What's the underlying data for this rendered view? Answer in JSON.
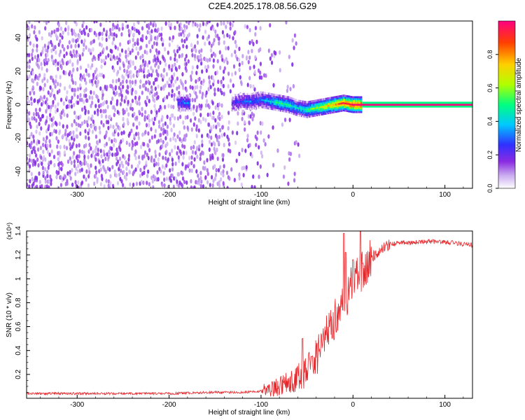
{
  "title": "C2E4.2025.178.08.56.G29",
  "chart_data": [
    {
      "type": "heatmap",
      "title": "C2E4.2025.178.08.56.G29",
      "xlabel": "Height of straight line (km)",
      "ylabel": "Frequency (Hz)",
      "xlim": [
        -355,
        130
      ],
      "ylim": [
        -50,
        50
      ],
      "x_ticks": [
        -300,
        -200,
        -100,
        0,
        100
      ],
      "y_ticks": [
        -40,
        -20,
        0,
        20,
        40
      ],
      "colorbar": {
        "label": "Normalized spectral amplitude",
        "range": [
          0.0,
          1.0
        ],
        "ticks": [
          "0.0",
          "0.2",
          "0.4",
          "0.6",
          "0.8"
        ],
        "colors": [
          "#ffffff",
          "#c8a8f0",
          "#8a2be2",
          "#3030ff",
          "#00c8ff",
          "#00ff80",
          "#b0ff00",
          "#ffd000",
          "#ff4000",
          "#ff0080"
        ]
      },
      "ridge": {
        "x": [
          -190,
          -180,
          -130,
          -120,
          -110,
          -100,
          -90,
          -80,
          -70,
          -60,
          -50,
          -40,
          -30,
          -20,
          -10,
          0,
          10,
          130
        ],
        "freq": [
          1,
          1,
          1,
          2,
          2,
          3,
          2,
          1,
          0,
          -2,
          -3,
          -2,
          -1,
          0,
          1,
          0,
          0,
          0
        ],
        "amplitude": [
          0.3,
          0.3,
          0.2,
          0.3,
          0.3,
          0.3,
          0.4,
          0.5,
          0.5,
          0.4,
          0.5,
          0.6,
          0.7,
          0.8,
          0.9,
          0.95,
          1.0,
          1.0
        ]
      },
      "noise_region": {
        "x_start": -355,
        "x_end": -100,
        "density": "high"
      },
      "grid": false
    },
    {
      "type": "line",
      "xlabel": "Height of straight line (km)",
      "ylabel": "SNR (10 * v/v)",
      "y_scale_label": "(x10⁴)",
      "xlim": [
        -355,
        130
      ],
      "ylim": [
        0,
        1.4
      ],
      "x_ticks": [
        -300,
        -200,
        -100,
        0,
        100
      ],
      "y_ticks": [
        0.2,
        0.4,
        0.6,
        0.8,
        1.0,
        1.2,
        1.4
      ],
      "color": "#e8262a",
      "series": [
        {
          "x": [
            -355,
            -300,
            -250,
            -200,
            -150,
            -120,
            -100,
            -90,
            -80,
            -70,
            -60,
            -50,
            -40,
            -30,
            -20,
            -10,
            0,
            10,
            20,
            30,
            40,
            50,
            60,
            80,
            100,
            120,
            130
          ],
          "values": [
            0.04,
            0.04,
            0.04,
            0.04,
            0.05,
            0.05,
            0.06,
            0.08,
            0.1,
            0.14,
            0.17,
            0.22,
            0.35,
            0.5,
            0.65,
            0.8,
            0.95,
            1.08,
            1.18,
            1.25,
            1.29,
            1.3,
            1.3,
            1.31,
            1.31,
            1.29,
            1.28
          ]
        }
      ],
      "spikes": [
        {
          "x": -55,
          "value": 0.5
        },
        {
          "x": -45,
          "value": 0.35
        },
        {
          "x": -25,
          "value": 0.65
        },
        {
          "x": -10,
          "value": 1.38
        },
        {
          "x": -8,
          "value": 1.22
        },
        {
          "x": 0,
          "value": 1.16
        },
        {
          "x": 8,
          "value": 1.4
        }
      ],
      "grid": false
    }
  ]
}
